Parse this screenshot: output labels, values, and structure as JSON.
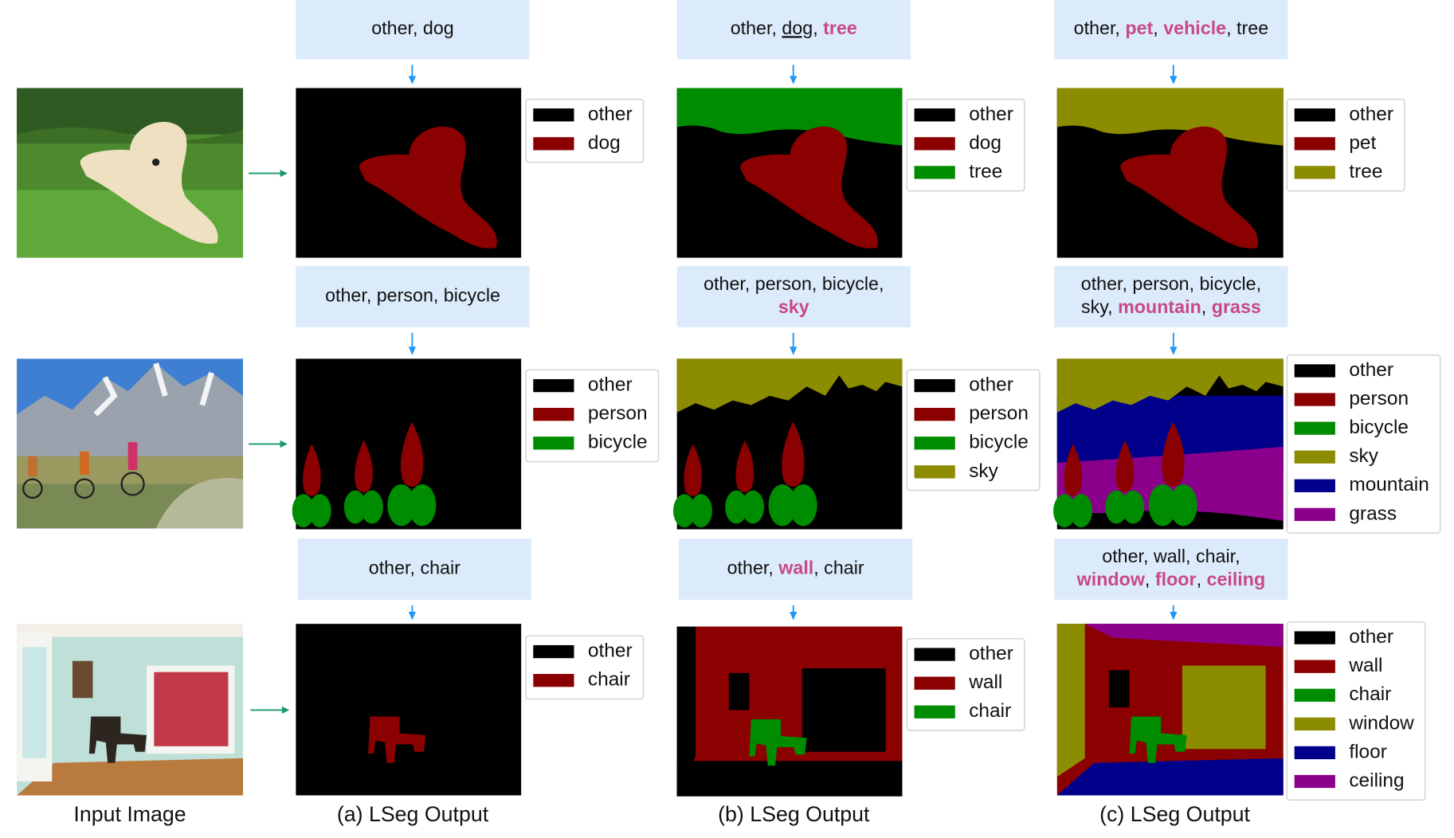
{
  "captions": [
    "Input Image",
    "(a) LSeg Output",
    "(b) LSeg Output",
    "(c) LSeg Output"
  ],
  "rows": [
    {
      "outputs": [
        {
          "prompt": [
            [
              {
                "text": "other, dog",
                "style": "plain"
              }
            ]
          ],
          "legend": [
            {
              "label": "other",
              "color": "#000000"
            },
            {
              "label": "dog",
              "color": "#8b0000"
            }
          ]
        },
        {
          "prompt": [
            [
              {
                "text": "other, ",
                "style": "plain"
              },
              {
                "text": "dog",
                "style": "underline"
              },
              {
                "text": ", ",
                "style": "plain"
              },
              {
                "text": "tree",
                "style": "highlight"
              }
            ]
          ],
          "legend": [
            {
              "label": "other",
              "color": "#000000"
            },
            {
              "label": "dog",
              "color": "#8b0000"
            },
            {
              "label": "tree",
              "color": "#008c00"
            }
          ]
        },
        {
          "prompt": [
            [
              {
                "text": "other, ",
                "style": "plain"
              },
              {
                "text": "pet",
                "style": "highlight"
              },
              {
                "text": ", ",
                "style": "plain"
              },
              {
                "text": "vehicle",
                "style": "highlight"
              },
              {
                "text": ", tree",
                "style": "plain"
              }
            ]
          ],
          "legend": [
            {
              "label": "other",
              "color": "#000000"
            },
            {
              "label": "pet",
              "color": "#8b0000"
            },
            {
              "label": "tree",
              "color": "#8c8c00"
            }
          ]
        }
      ]
    },
    {
      "outputs": [
        {
          "prompt": [
            [
              {
                "text": "other, person, bicycle",
                "style": "plain"
              }
            ]
          ],
          "legend": [
            {
              "label": "other",
              "color": "#000000"
            },
            {
              "label": "person",
              "color": "#8b0000"
            },
            {
              "label": "bicycle",
              "color": "#008c00"
            }
          ]
        },
        {
          "prompt": [
            [
              {
                "text": "other, person, bicycle,",
                "style": "plain"
              }
            ],
            [
              {
                "text": "sky",
                "style": "highlight"
              }
            ]
          ],
          "legend": [
            {
              "label": "other",
              "color": "#000000"
            },
            {
              "label": "person",
              "color": "#8b0000"
            },
            {
              "label": "bicycle",
              "color": "#008c00"
            },
            {
              "label": "sky",
              "color": "#8c8c00"
            }
          ]
        },
        {
          "prompt": [
            [
              {
                "text": "other, person, bicycle,",
                "style": "plain"
              }
            ],
            [
              {
                "text": "sky, ",
                "style": "plain"
              },
              {
                "text": "mountain",
                "style": "highlight"
              },
              {
                "text": ", ",
                "style": "plain"
              },
              {
                "text": "grass",
                "style": "highlight"
              }
            ]
          ],
          "legend": [
            {
              "label": "other",
              "color": "#000000"
            },
            {
              "label": "person",
              "color": "#8b0000"
            },
            {
              "label": "bicycle",
              "color": "#008c00"
            },
            {
              "label": "sky",
              "color": "#8c8c00"
            },
            {
              "label": "mountain",
              "color": "#00008b"
            },
            {
              "label": "grass",
              "color": "#8b008b"
            }
          ]
        }
      ]
    },
    {
      "outputs": [
        {
          "prompt": [
            [
              {
                "text": "other, chair",
                "style": "plain"
              }
            ]
          ],
          "legend": [
            {
              "label": "other",
              "color": "#000000"
            },
            {
              "label": "chair",
              "color": "#8b0000"
            }
          ]
        },
        {
          "prompt": [
            [
              {
                "text": "other, ",
                "style": "plain"
              },
              {
                "text": "wall",
                "style": "highlight"
              },
              {
                "text": ", chair",
                "style": "plain"
              }
            ]
          ],
          "legend": [
            {
              "label": "other",
              "color": "#000000"
            },
            {
              "label": "wall",
              "color": "#8b0000"
            },
            {
              "label": "chair",
              "color": "#008c00"
            }
          ]
        },
        {
          "prompt": [
            [
              {
                "text": "other, wall, chair,",
                "style": "plain"
              }
            ],
            [
              {
                "text": "window",
                "style": "highlight"
              },
              {
                "text": ", ",
                "style": "plain"
              },
              {
                "text": "floor",
                "style": "highlight"
              },
              {
                "text": ", ",
                "style": "plain"
              },
              {
                "text": "ceiling",
                "style": "highlight"
              }
            ]
          ],
          "legend": [
            {
              "label": "other",
              "color": "#000000"
            },
            {
              "label": "wall",
              "color": "#8b0000"
            },
            {
              "label": "chair",
              "color": "#008c00"
            },
            {
              "label": "window",
              "color": "#8c8c00"
            },
            {
              "label": "floor",
              "color": "#00008b"
            },
            {
              "label": "ceiling",
              "color": "#8b008b"
            }
          ]
        }
      ]
    }
  ]
}
